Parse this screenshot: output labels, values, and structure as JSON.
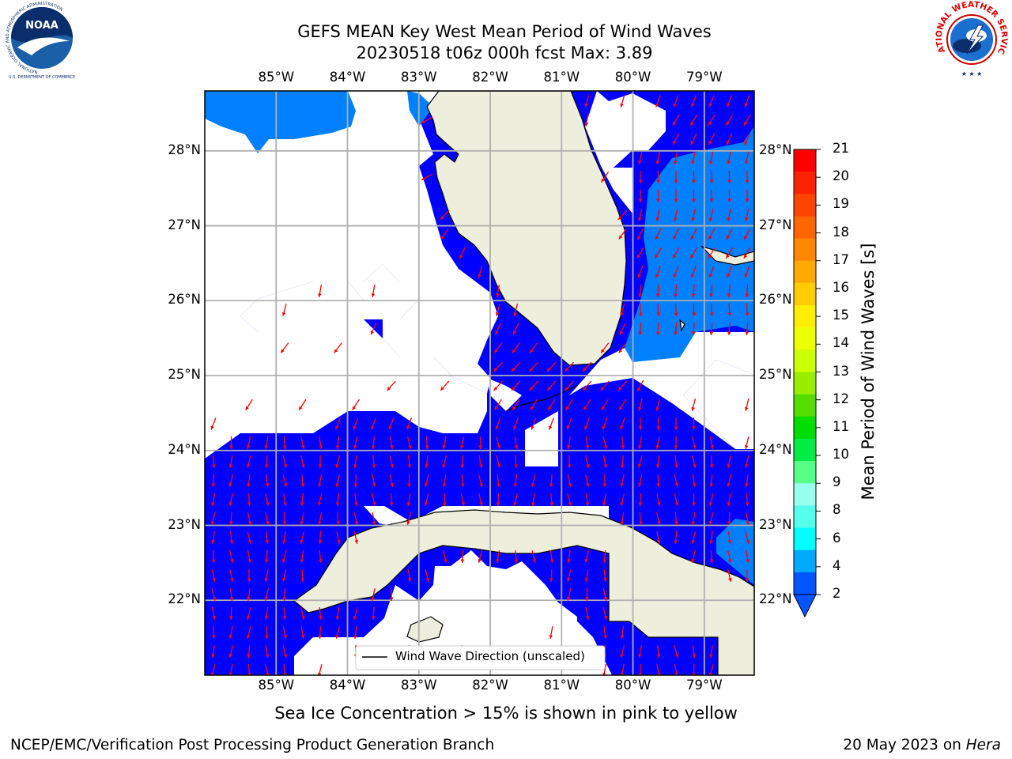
{
  "header": {
    "title_line1": "GEFS MEAN Key West Mean Period of Wind Waves",
    "title_line2": "20230518 t06z 000h fcst   Max: 3.89"
  },
  "logos": {
    "left": {
      "name": "NOAA",
      "ring_text": "NATIONAL OCEANIC AND ATMOSPHERIC ADMINISTRATION",
      "bottom_text": "U.S. DEPARTMENT OF COMMERCE"
    },
    "right": {
      "ring_text": "NATIONAL WEATHER SERVICE"
    }
  },
  "map": {
    "lon_labels": [
      "85°W",
      "84°W",
      "83°W",
      "82°W",
      "81°W",
      "80°W",
      "79°W"
    ],
    "lat_labels": [
      "28°N",
      "27°N",
      "26°N",
      "25°N",
      "24°N",
      "23°N",
      "22°N"
    ],
    "lon_range": [
      -86.0,
      -78.3
    ],
    "lat_range": [
      21.0,
      28.8
    ],
    "legend_label": "Wind Wave Direction (unscaled)",
    "colors": {
      "land": "#eeeedd",
      "wave_2_4": "#0000ff",
      "wave_4_6": "#0080ff",
      "arrow": "#ff0000",
      "grid": "#b0b0b0"
    }
  },
  "colorbar": {
    "label": "Mean Period of Wind Waves [s]",
    "tick_labels": [
      "21",
      "20",
      "19",
      "18",
      "17",
      "16",
      "15",
      "14",
      "13",
      "12",
      "11",
      "10",
      "9",
      "8",
      "6",
      "4",
      "2"
    ],
    "bin_colors": [
      "#ff0000",
      "#ff2200",
      "#ff4400",
      "#ff6600",
      "#ff8800",
      "#ffaa00",
      "#ffcc00",
      "#ffee00",
      "#eeff00",
      "#ccff00",
      "#99ee00",
      "#55dd00",
      "#00dd00",
      "#00ee44",
      "#55ff88",
      "#99ffee",
      "#55ffee",
      "#00ffff",
      "#00aaff",
      "#0055ff"
    ]
  },
  "note": "Sea Ice Concentration > 15% is shown in pink to yellow",
  "footer": {
    "left": "NCEP/EMC/Verification Post Processing Product Generation Branch",
    "right_prefix": "20 May 2023 on ",
    "right_italic": "Hera"
  }
}
